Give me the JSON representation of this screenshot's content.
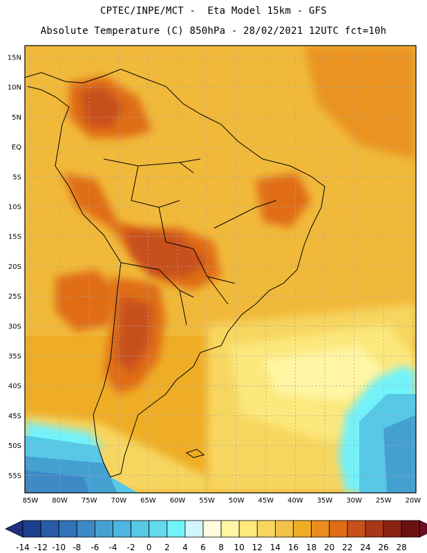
{
  "header": {
    "line1": "CPTEC/INPE/MCT -  Eta Model 15km - GFS",
    "line2": "Absolute Temperature (C) 850hPa - 28/02/2021 12UTC fct=10h"
  },
  "map": {
    "lat_labels": [
      "15N",
      "10N",
      "5N",
      "EQ",
      "5S",
      "10S",
      "15S",
      "20S",
      "25S",
      "30S",
      "35S",
      "40S",
      "45S",
      "50S",
      "55S"
    ],
    "lon_labels": [
      "85W",
      "80W",
      "75W",
      "70W",
      "65W",
      "60W",
      "55W",
      "50W",
      "45W",
      "40W",
      "35W",
      "30W",
      "25W",
      "20W"
    ]
  },
  "colorbar": {
    "ticks": [
      "-14",
      "-12",
      "-10",
      "-8",
      "-6",
      "-4",
      "-2",
      "0",
      "2",
      "4",
      "6",
      "8",
      "10",
      "12",
      "14",
      "16",
      "18",
      "20",
      "22",
      "24",
      "26",
      "28"
    ],
    "colors": [
      "#1a3f8c",
      "#2a5aa6",
      "#3272b8",
      "#3c89c6",
      "#45a0d2",
      "#4db6de",
      "#57c8e6",
      "#62dbef",
      "#72f2fa",
      "#d2f5fc",
      "#fffbe0",
      "#fff5a3",
      "#fce87c",
      "#f7d660",
      "#f3c24a",
      "#efad26",
      "#e98d1e",
      "#e06d14",
      "#c7501c",
      "#a93818",
      "#8a2412",
      "#6a1212"
    ],
    "under_color": "#1d2f7e",
    "over_color": "#6e0d22"
  }
}
